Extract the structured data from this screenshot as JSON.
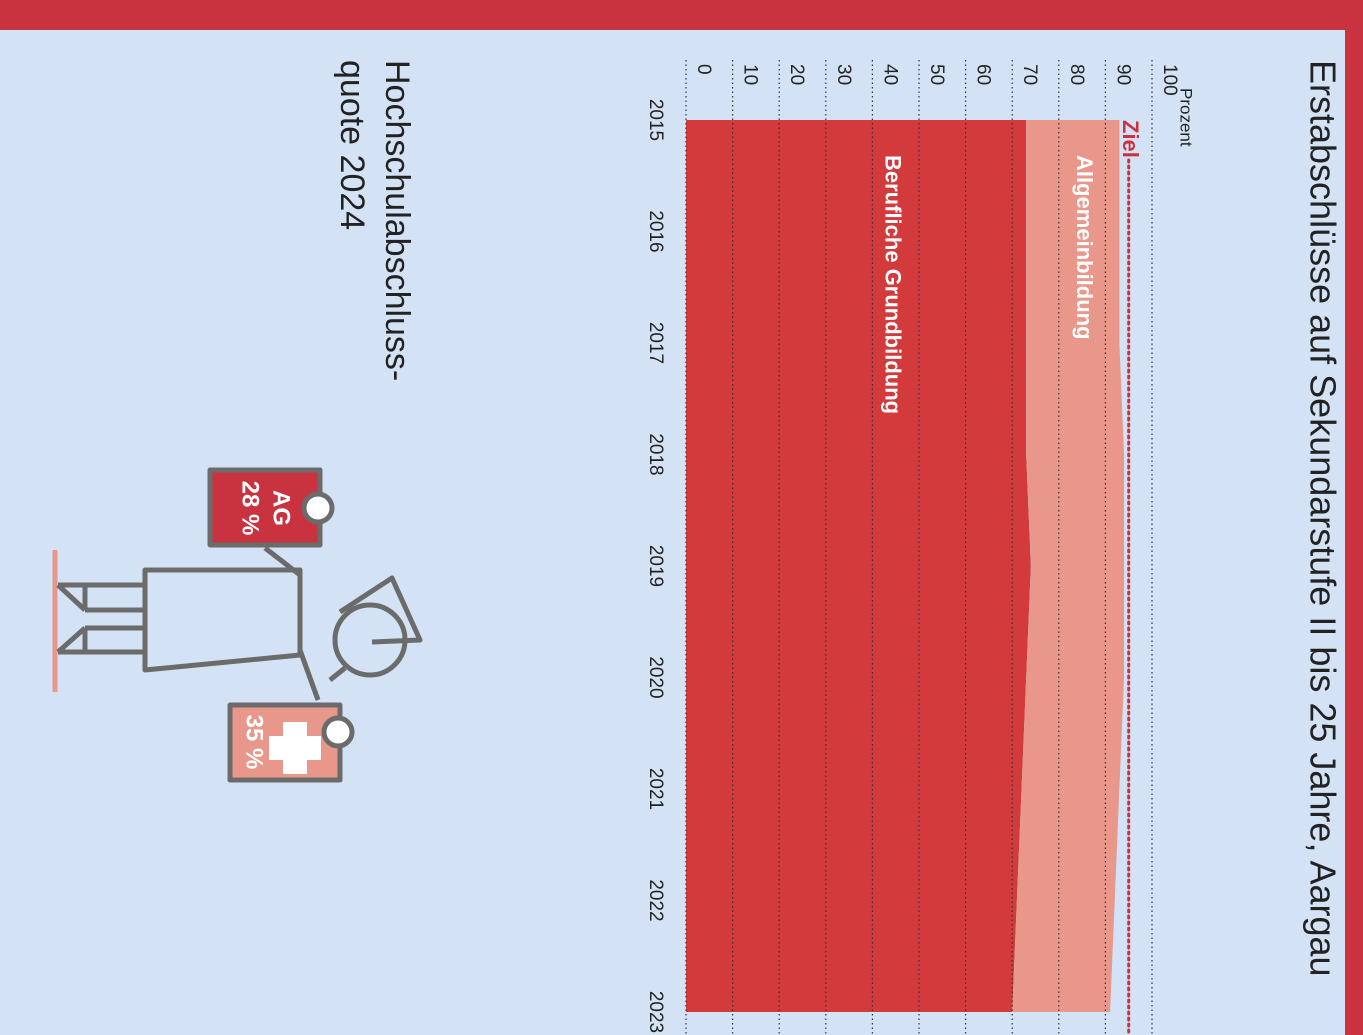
{
  "chart_data": {
    "type": "area",
    "title": "Erstabschlüsse auf Sekundarstufe II bis 25 Jahre, Aargau",
    "y_label": "Prozent",
    "categories": [
      "2015",
      "2016",
      "2017",
      "2018",
      "2019",
      "2020",
      "2021",
      "2022",
      "2023"
    ],
    "series": [
      {
        "name": "Berufliche Grundbildung",
        "color": "#d23a3c",
        "values": [
          73,
          73,
          73,
          73,
          74,
          73,
          72,
          71,
          70
        ]
      },
      {
        "name": "Allgemeinbildung",
        "color": "#e8978a",
        "values": [
          20,
          20,
          20,
          21,
          20,
          21,
          21,
          21,
          21
        ]
      }
    ],
    "stacked": true,
    "target": {
      "label": "Ziel",
      "value": 95,
      "color": "#c8333f"
    },
    "ylim": [
      0,
      100
    ],
    "yticks": [
      0,
      10,
      20,
      30,
      40,
      50,
      60,
      70,
      80,
      90,
      100
    ],
    "grid": true
  },
  "infographic": {
    "title": [
      "Hochschulabschluss-",
      "quote 2024"
    ],
    "signs": [
      {
        "label": "AG",
        "value_label": "28 %"
      },
      {
        "value_label": "35 %"
      }
    ]
  }
}
